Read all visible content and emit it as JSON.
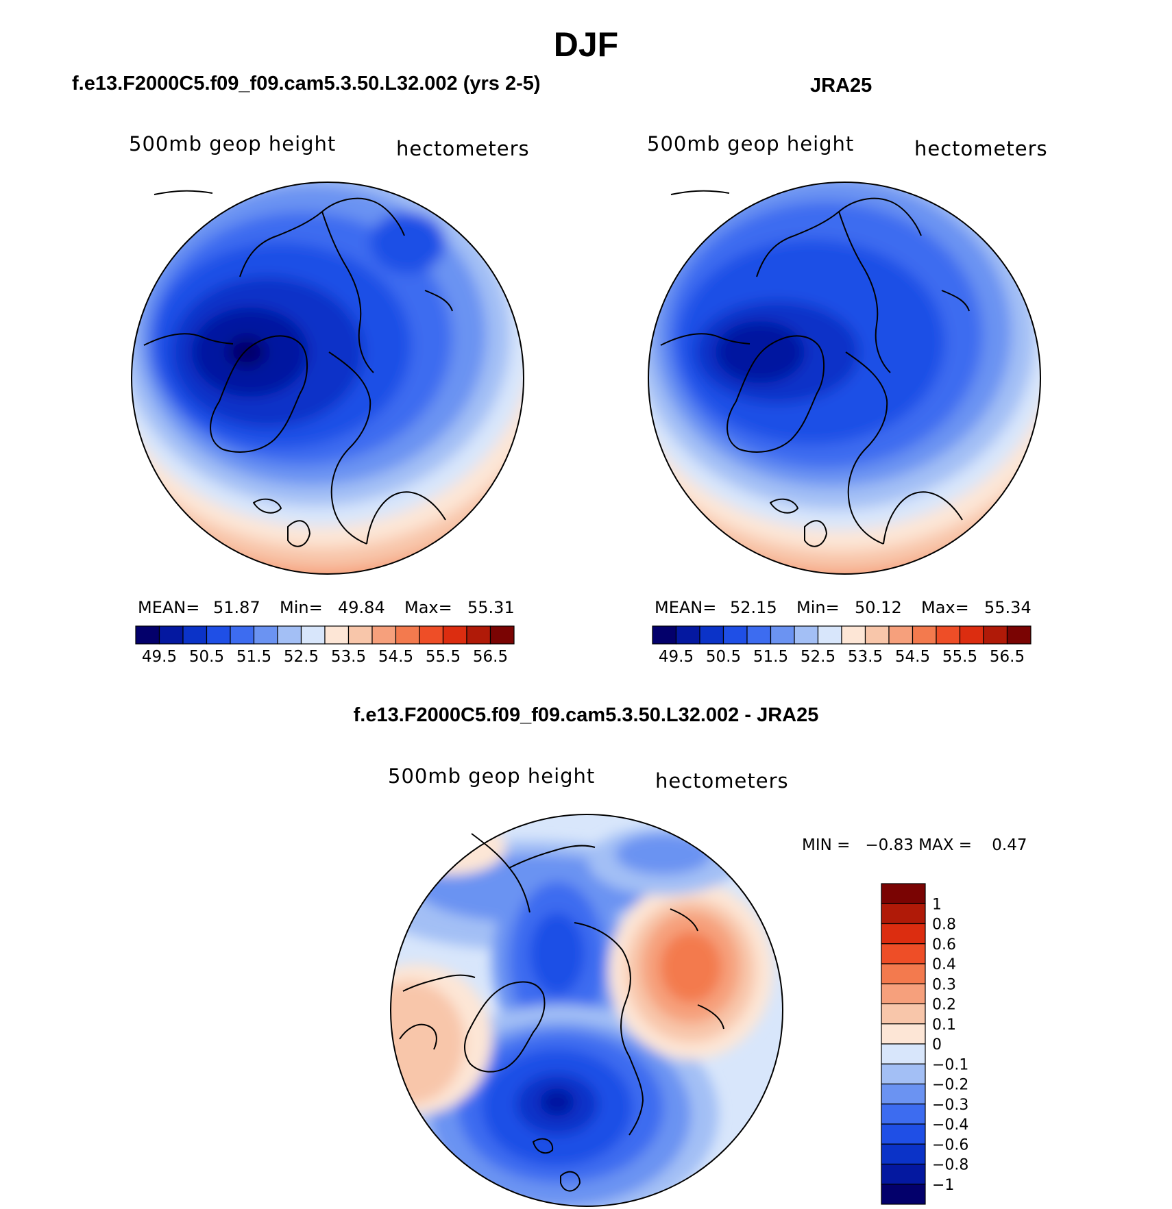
{
  "title": "DJF",
  "panel_model": {
    "heading": "f.e13.F2000C5.f09_f09.cam5.3.50.L32.002 (yrs 2-5)",
    "left_label": "500mb geop height",
    "right_label": "hectometers",
    "stats": {
      "mean_label": "MEAN=",
      "mean": "51.87",
      "min_label": "Min=",
      "min": "49.84",
      "max_label": "Max=",
      "max": "55.31"
    }
  },
  "panel_obs": {
    "heading": "JRA25",
    "left_label": "500mb geop height",
    "right_label": "hectometers",
    "stats": {
      "mean_label": "MEAN=",
      "mean": "52.15",
      "min_label": "Min=",
      "min": "50.12",
      "max_label": "Max=",
      "max": "55.34"
    }
  },
  "panel_diff": {
    "heading": "f.e13.F2000C5.f09_f09.cam5.3.50.L32.002 - JRA25",
    "left_label": "500mb geop height",
    "right_label": "hectometers",
    "minmax_text": "MIN =   −0.83 MAX =    0.47"
  },
  "colorbar_abs": {
    "labels": [
      "49.5",
      "50.5",
      "51.5",
      "52.5",
      "53.5",
      "54.5",
      "55.5",
      "56.5"
    ],
    "colors": [
      "#03006b",
      "#0418a0",
      "#0b33c8",
      "#1f4fe6",
      "#3d6cf0",
      "#6b93f2",
      "#a3bff5",
      "#d8e6fb",
      "#fde6d6",
      "#f8c6aa",
      "#f6a07c",
      "#f37a4e",
      "#ee4e27",
      "#dc2d10",
      "#b01a08",
      "#7a0403"
    ]
  },
  "colorbar_diff": {
    "labels": [
      "1",
      "0.8",
      "0.6",
      "0.4",
      "0.3",
      "0.2",
      "0.1",
      "0",
      "−0.1",
      "−0.2",
      "−0.3",
      "−0.4",
      "−0.6",
      "−0.8",
      "−1"
    ],
    "colors": [
      "#7a0403",
      "#b01a08",
      "#dc2d10",
      "#ee4e27",
      "#f37a4e",
      "#f6a07c",
      "#f8c6aa",
      "#fde6d6",
      "#d8e6fb",
      "#a3bff5",
      "#6b93f2",
      "#3d6cf0",
      "#1f4fe6",
      "#0b33c8",
      "#0418a0",
      "#03006b"
    ]
  }
}
